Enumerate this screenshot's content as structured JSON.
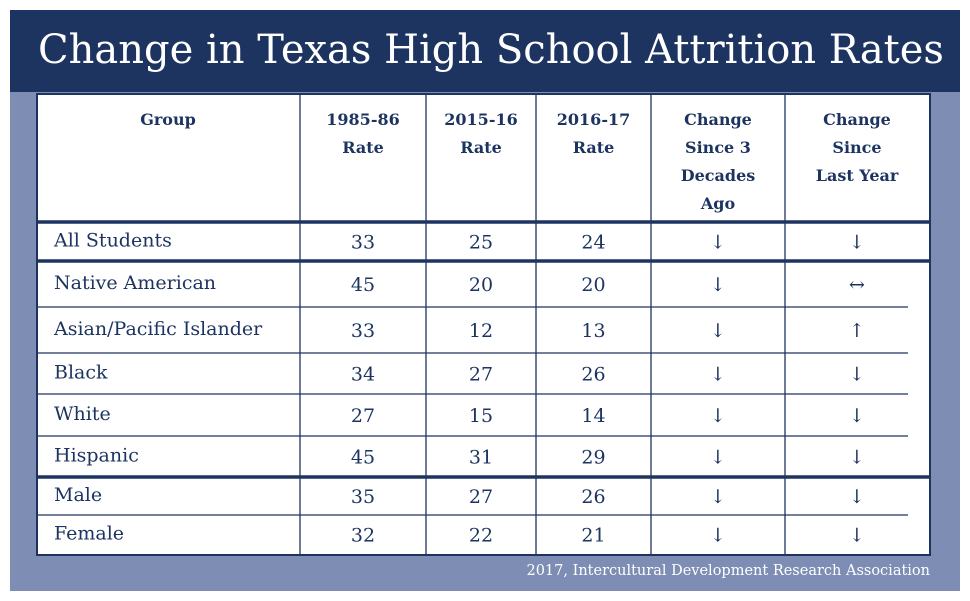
{
  "title": "Change in Texas High School Attrition Rates",
  "source": "2017, Intercultural Development Research Association",
  "colors": {
    "navy": "#1d3461",
    "frame": "#7d8db3",
    "panel": "#ffffff"
  },
  "chart_data": {
    "type": "table",
    "title": "Change in Texas High School Attrition Rates",
    "columns": [
      [
        "Group"
      ],
      [
        "1985-86",
        "Rate"
      ],
      [
        "2015-16",
        "Rate"
      ],
      [
        "2016-17",
        "Rate"
      ],
      [
        "Change",
        "Since 3",
        "Decades",
        "Ago"
      ],
      [
        "Change",
        "Since",
        "Last Year"
      ]
    ],
    "rows": [
      {
        "group": "All Students",
        "r1985": 33,
        "r2015": 25,
        "r2016": 24,
        "change_3_decades": "↓",
        "change_last_year": "↓"
      },
      {
        "group": "Native American",
        "r1985": 45,
        "r2015": 20,
        "r2016": 20,
        "change_3_decades": "↓",
        "change_last_year": "↔"
      },
      {
        "group": "Asian/Pacific Islander",
        "r1985": 33,
        "r2015": 12,
        "r2016": 13,
        "change_3_decades": "↓",
        "change_last_year": "↑"
      },
      {
        "group": "Black",
        "r1985": 34,
        "r2015": 27,
        "r2016": 26,
        "change_3_decades": "↓",
        "change_last_year": "↓"
      },
      {
        "group": "White",
        "r1985": 27,
        "r2015": 15,
        "r2016": 14,
        "change_3_decades": "↓",
        "change_last_year": "↓"
      },
      {
        "group": "Hispanic",
        "r1985": 45,
        "r2015": 31,
        "r2016": 29,
        "change_3_decades": "↓",
        "change_last_year": "↓"
      },
      {
        "group": "Male",
        "r1985": 35,
        "r2015": 27,
        "r2016": 26,
        "change_3_decades": "↓",
        "change_last_year": "↓"
      },
      {
        "group": "Female",
        "r1985": 32,
        "r2015": 22,
        "r2016": 21,
        "change_3_decades": "↓",
        "change_last_year": "↓"
      }
    ]
  }
}
